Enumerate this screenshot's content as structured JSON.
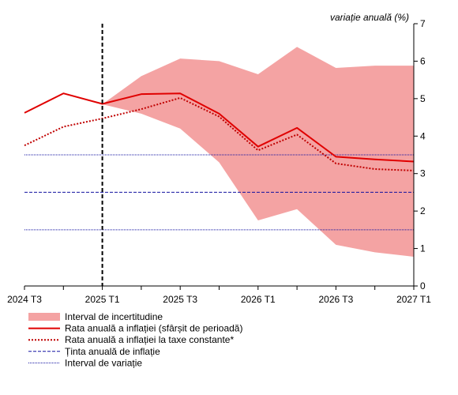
{
  "chart_data": {
    "type": "line",
    "ylabel": "variație anuală (%)",
    "ylim": [
      0,
      7
    ],
    "y_ticks": [
      "0",
      "1",
      "2",
      "3",
      "4",
      "5",
      "6",
      "7"
    ],
    "x_positions": [
      "2024 T3",
      "2024 T4",
      "2025 T1",
      "2025 T2",
      "2025 T3",
      "2025 T4",
      "2026 T1",
      "2026 T2",
      "2026 T3",
      "2026 T4",
      "2027 T1"
    ],
    "x_tick_labels": [
      "2024 T3",
      "2025 T1",
      "2025 T3",
      "2026 T1",
      "2026 T3",
      "2027 T1"
    ],
    "forecast_start": "2025 T1",
    "legend_position": "bottom-left",
    "uncertainty_band": {
      "name": "Interval de incertitudine",
      "color": "#f4a3a3",
      "from_x": "2025 T1",
      "upper": [
        4.85,
        5.6,
        6.07,
        6.0,
        5.65,
        6.38,
        5.82,
        5.88,
        5.88
      ],
      "lower": [
        4.85,
        4.6,
        4.2,
        3.3,
        1.75,
        2.05,
        1.1,
        0.9,
        0.78
      ]
    },
    "series": [
      {
        "name": "Rata anuală a inflației (sfârșit de perioadă)",
        "color": "#e00000",
        "style": "solid",
        "values": [
          4.62,
          5.14,
          4.86,
          5.12,
          5.14,
          4.6,
          3.72,
          4.22,
          3.45,
          3.38,
          3.32
        ]
      },
      {
        "name": "Rata anuală a inflației la taxe constante*",
        "color": "#c00000",
        "style": "dotted",
        "values": [
          3.75,
          4.25,
          4.47,
          4.72,
          5.02,
          4.52,
          3.62,
          4.04,
          3.27,
          3.12,
          3.08
        ]
      }
    ],
    "target": {
      "name": "Ținta anuală de inflație",
      "value": 2.5,
      "color": "#1010a0",
      "style": "dashed"
    },
    "variation_band": {
      "name": "Interval de variație",
      "values": [
        1.5,
        3.5
      ],
      "color": "#1010a0",
      "style": "dotted"
    }
  }
}
